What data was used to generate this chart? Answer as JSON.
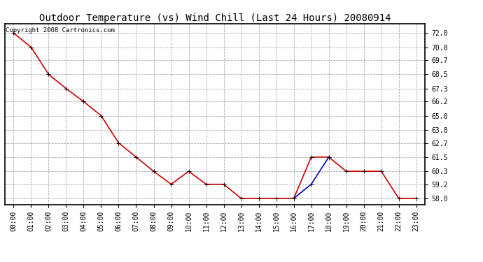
{
  "title": "Outdoor Temperature (vs) Wind Chill (Last 24 Hours) 20080914",
  "copyright_text": "Copyright 2008 Cartronics.com",
  "x_labels": [
    "00:00",
    "01:00",
    "02:00",
    "03:00",
    "04:00",
    "05:00",
    "06:00",
    "07:00",
    "08:00",
    "09:00",
    "10:00",
    "11:00",
    "12:00",
    "13:00",
    "14:00",
    "15:00",
    "16:00",
    "17:00",
    "18:00",
    "19:00",
    "20:00",
    "21:00",
    "22:00",
    "23:00"
  ],
  "temp_values": [
    72.0,
    70.8,
    68.5,
    67.3,
    66.2,
    65.0,
    62.7,
    61.5,
    60.3,
    59.2,
    60.3,
    59.2,
    59.2,
    58.0,
    58.0,
    58.0,
    58.0,
    61.5,
    61.5,
    60.3,
    60.3,
    60.3,
    58.0,
    58.0
  ],
  "windchill_values": [
    null,
    null,
    null,
    null,
    null,
    null,
    null,
    null,
    null,
    null,
    null,
    null,
    null,
    null,
    null,
    null,
    58.0,
    59.2,
    61.5,
    null,
    null,
    null,
    null,
    null
  ],
  "ylim_min": 57.5,
  "ylim_max": 72.8,
  "yticks": [
    72.0,
    70.8,
    69.7,
    68.5,
    67.3,
    66.2,
    65.0,
    63.8,
    62.7,
    61.5,
    60.3,
    59.2,
    58.0
  ],
  "temp_color": "#cc0000",
  "windchill_color": "#0000cc",
  "grid_color": "#aaaaaa",
  "bg_color": "#ffffff",
  "plot_bg_color": "#ffffff",
  "title_fontsize": 10,
  "label_fontsize": 7,
  "copyright_fontsize": 6.5,
  "marker": "+",
  "marker_size": 5,
  "line_width": 1.2
}
